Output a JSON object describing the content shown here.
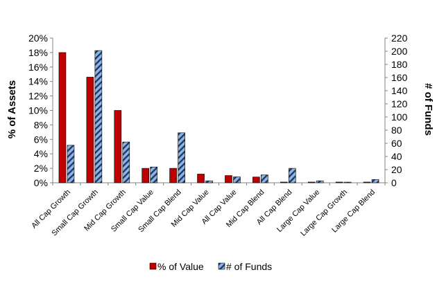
{
  "chart_data": {
    "type": "bar",
    "categories": [
      "All Cap Growth",
      "Small Cap Growth",
      "Mid Cap Growth",
      "Small Cap Value",
      "Small Cap Blend",
      "Mid Cap Value",
      "All Cap Value",
      "Mid Cap Blend",
      "All Cap Blend",
      "Large Cap Value",
      "Large Cap Growth",
      "Large Cap Blend"
    ],
    "series": [
      {
        "name": "% of Value",
        "axis": "left",
        "color": "#c00000",
        "values": [
          18.0,
          14.6,
          10.0,
          2.0,
          2.0,
          1.2,
          1.0,
          0.8,
          0.1,
          0.1,
          0.1,
          0.1
        ]
      },
      {
        "name": "# of Funds",
        "axis": "right",
        "color": "#8db4e2",
        "pattern": "diagonal-stripes",
        "values": [
          57,
          201,
          62,
          24,
          76,
          3,
          9,
          12,
          22,
          3,
          1,
          5
        ]
      }
    ],
    "ylabel": "% of Assets",
    "y2label": "# of Funds",
    "ylim": [
      0,
      20
    ],
    "y2lim": [
      0,
      220
    ],
    "yticks": [
      "0%",
      "2%",
      "4%",
      "6%",
      "8%",
      "10%",
      "12%",
      "14%",
      "16%",
      "18%",
      "20%"
    ],
    "y2ticks": [
      "0",
      "20",
      "40",
      "60",
      "80",
      "100",
      "120",
      "140",
      "160",
      "180",
      "200",
      "220"
    ],
    "grid": false,
    "legend_position": "bottom"
  }
}
